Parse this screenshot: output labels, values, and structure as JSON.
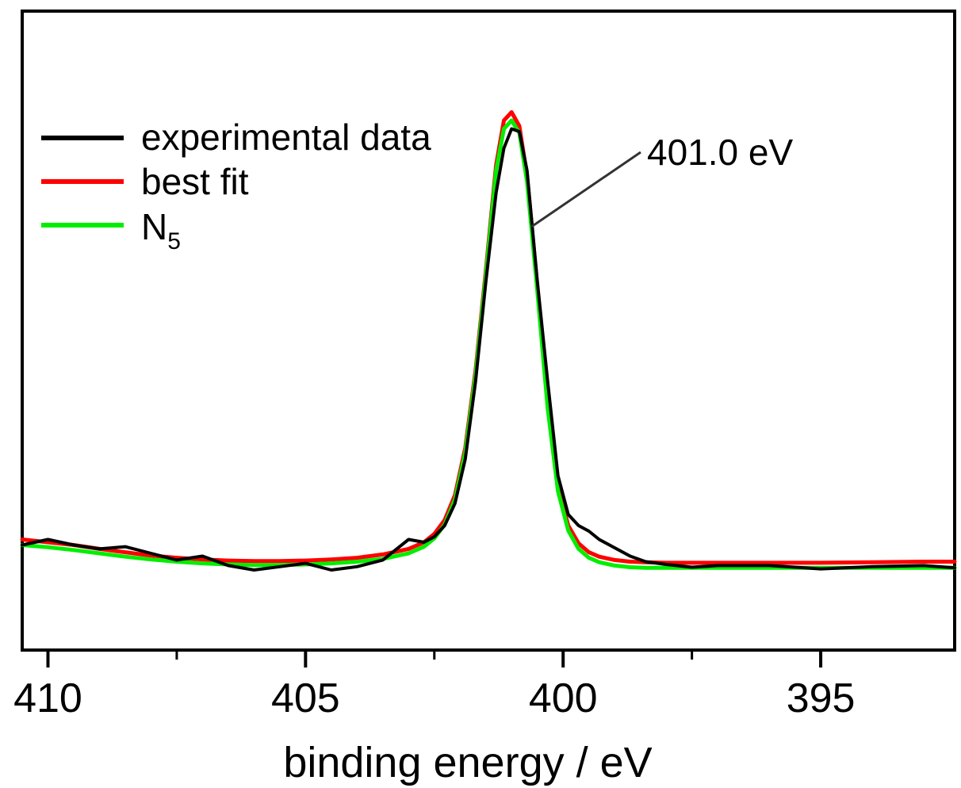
{
  "chart_data": {
    "type": "line",
    "title": "",
    "xlabel": "binding energy / eV",
    "ylabel": "",
    "xlim": [
      410.5,
      392.4
    ],
    "ylim": [
      0,
      1
    ],
    "x_reversed": true,
    "x_ticks_major": [
      410,
      405,
      400,
      395
    ],
    "x_tick_labels": [
      "410",
      "405",
      "400",
      "395"
    ],
    "x_ticks_minor": [
      407.5,
      402.5,
      397.5
    ],
    "grid": false,
    "legend": {
      "placement": "top-left",
      "entries": [
        {
          "label": "experimental data",
          "color": "#000000"
        },
        {
          "label": "best fit",
          "color": "#ff0000"
        },
        {
          "label": "N",
          "subscript": "5",
          "color": "#00ee00"
        }
      ]
    },
    "annotation": {
      "text": "401.0 eV",
      "x": 400.8
    },
    "series": [
      {
        "name": "experimental data",
        "color": "#000000",
        "x": [
          410.5,
          410.0,
          409.5,
          409.0,
          408.5,
          408.0,
          407.5,
          407.0,
          406.5,
          406.0,
          405.5,
          405.0,
          404.5,
          404.0,
          403.5,
          403.0,
          402.7,
          402.5,
          402.3,
          402.1,
          401.9,
          401.7,
          401.5,
          401.3,
          401.15,
          401.0,
          400.85,
          400.7,
          400.5,
          400.3,
          400.1,
          399.9,
          399.7,
          399.5,
          399.3,
          399.0,
          398.7,
          398.4,
          398.0,
          397.5,
          397.0,
          396.0,
          395.0,
          394.0,
          393.0,
          392.4
        ],
        "y": [
          0.125,
          0.135,
          0.125,
          0.118,
          0.122,
          0.11,
          0.098,
          0.105,
          0.088,
          0.08,
          0.086,
          0.092,
          0.08,
          0.086,
          0.098,
          0.135,
          0.13,
          0.14,
          0.16,
          0.2,
          0.28,
          0.42,
          0.6,
          0.76,
          0.84,
          0.875,
          0.87,
          0.8,
          0.6,
          0.42,
          0.25,
          0.18,
          0.16,
          0.15,
          0.135,
          0.12,
          0.105,
          0.095,
          0.09,
          0.085,
          0.088,
          0.088,
          0.082,
          0.086,
          0.088,
          0.084
        ]
      },
      {
        "name": "best fit",
        "color": "#ff0000",
        "x": [
          410.5,
          410.0,
          409.5,
          409.0,
          408.5,
          408.0,
          407.5,
          407.0,
          406.5,
          406.0,
          405.5,
          405.0,
          404.5,
          404.0,
          403.5,
          403.0,
          402.7,
          402.5,
          402.3,
          402.1,
          401.9,
          401.7,
          401.5,
          401.3,
          401.15,
          401.0,
          400.85,
          400.7,
          400.5,
          400.3,
          400.1,
          399.9,
          399.7,
          399.5,
          399.3,
          399.0,
          398.7,
          398.4,
          398.0,
          397.5,
          397.0,
          396.0,
          395.0,
          394.0,
          393.0,
          392.4
        ],
        "y": [
          0.135,
          0.13,
          0.125,
          0.118,
          0.112,
          0.106,
          0.102,
          0.099,
          0.097,
          0.096,
          0.096,
          0.097,
          0.099,
          0.102,
          0.108,
          0.118,
          0.13,
          0.145,
          0.17,
          0.215,
          0.3,
          0.44,
          0.62,
          0.81,
          0.89,
          0.905,
          0.88,
          0.79,
          0.59,
          0.38,
          0.23,
          0.16,
          0.128,
          0.112,
          0.104,
          0.098,
          0.095,
          0.094,
          0.093,
          0.093,
          0.093,
          0.093,
          0.093,
          0.094,
          0.095,
          0.095
        ]
      },
      {
        "name": "N5",
        "color": "#00ee00",
        "x": [
          410.5,
          410.0,
          409.5,
          409.0,
          408.5,
          408.0,
          407.5,
          407.0,
          406.5,
          406.0,
          405.5,
          405.0,
          404.5,
          404.0,
          403.5,
          403.0,
          402.7,
          402.5,
          402.3,
          402.1,
          401.9,
          401.7,
          401.5,
          401.3,
          401.15,
          401.0,
          400.85,
          400.7,
          400.5,
          400.3,
          400.1,
          399.9,
          399.7,
          399.5,
          399.3,
          399.0,
          398.7,
          398.4,
          398.0,
          397.5,
          397.0,
          396.0,
          395.0,
          394.0,
          393.0,
          392.4
        ],
        "y": [
          0.125,
          0.121,
          0.116,
          0.11,
          0.104,
          0.099,
          0.095,
          0.092,
          0.09,
          0.089,
          0.089,
          0.09,
          0.092,
          0.095,
          0.1,
          0.11,
          0.122,
          0.137,
          0.162,
          0.207,
          0.292,
          0.432,
          0.612,
          0.8,
          0.875,
          0.89,
          0.868,
          0.78,
          0.582,
          0.372,
          0.222,
          0.151,
          0.118,
          0.102,
          0.094,
          0.088,
          0.085,
          0.084,
          0.084,
          0.084,
          0.084,
          0.084,
          0.084,
          0.084,
          0.084,
          0.084
        ]
      }
    ]
  },
  "colors": {
    "frame": "#000000",
    "leader_line": "#333333"
  }
}
